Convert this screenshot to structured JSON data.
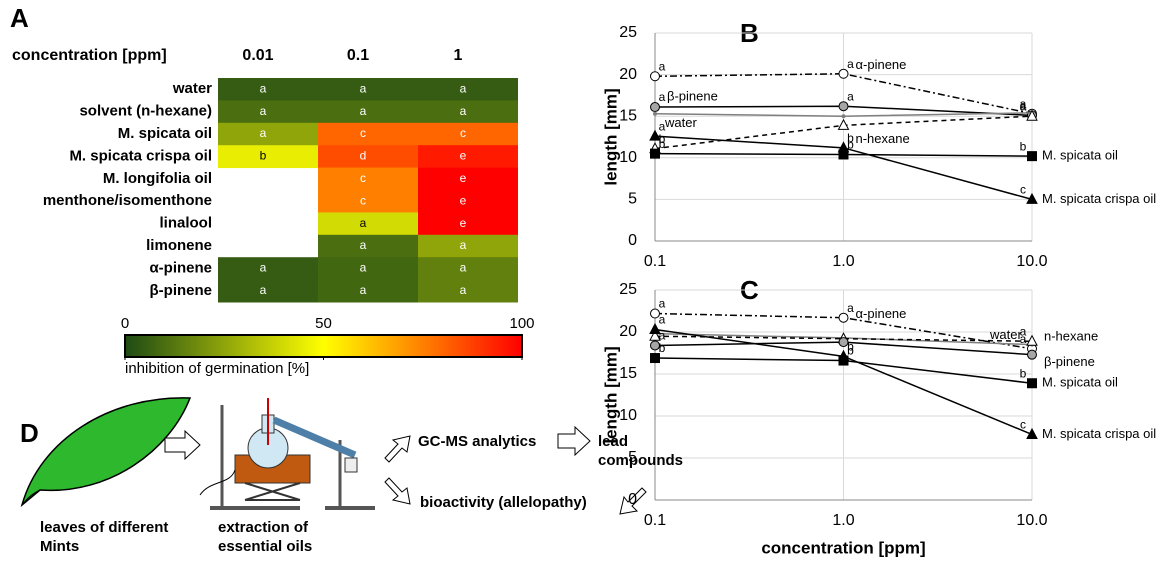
{
  "chart_data": [
    {
      "type": "heatmap",
      "panel": "A",
      "x_label": "concentration [ppm]",
      "x_categories": [
        "0.01",
        "0.1",
        "1"
      ],
      "y_categories": [
        "water",
        "solvent (n-hexane)",
        "M. spicata oil",
        "M. spicata crispa oil",
        "M. longifolia oil",
        "menthone/isomenthone",
        "linalool",
        "limonene",
        "α-pinene",
        "β-pinene"
      ],
      "values": [
        [
          5,
          5,
          5
        ],
        [
          10,
          10,
          10
        ],
        [
          25,
          80,
          80
        ],
        [
          45,
          85,
          95
        ],
        [
          null,
          75,
          100
        ],
        [
          null,
          75,
          100
        ],
        [
          null,
          40,
          100
        ],
        [
          null,
          10,
          25
        ],
        [
          5,
          8,
          15
        ],
        [
          5,
          8,
          15
        ]
      ],
      "letters": [
        [
          "a",
          "a",
          "a"
        ],
        [
          "a",
          "a",
          "a"
        ],
        [
          "a",
          "c",
          "c"
        ],
        [
          "b",
          "d",
          "e"
        ],
        [
          null,
          "c",
          "e"
        ],
        [
          null,
          "c",
          "e"
        ],
        [
          null,
          "a",
          "e"
        ],
        [
          null,
          "a",
          "a"
        ],
        [
          "a",
          "a",
          "a"
        ],
        [
          "a",
          "a",
          "a"
        ]
      ],
      "colorbar": {
        "label": "inhibition of germination [%]",
        "lim": [
          0,
          100
        ],
        "ticks": [
          0,
          50,
          100
        ],
        "colors": [
          "#1e4a14",
          "#ffff00",
          "#ff0000"
        ]
      }
    },
    {
      "type": "line",
      "panel": "B",
      "y_label": "length [mm]",
      "log_x": true,
      "grid": true,
      "x": [
        0.1,
        1,
        10
      ],
      "xlim": [
        0.1,
        10
      ],
      "xticks": [
        0.1,
        {
          "value": 1,
          "label": "1.0"
        },
        {
          "value": 10,
          "label": "10.0"
        }
      ],
      "ylim": [
        0,
        25
      ],
      "yticks": [
        0,
        5,
        10,
        15,
        20,
        25
      ],
      "series": [
        {
          "name": "α-pinene",
          "color": "#000000",
          "marker": "circle",
          "marker_fill": "#ffffff",
          "dash": "7,3,2,3",
          "values": [
            19.8,
            20.1,
            15.3
          ],
          "point_labels": [
            "a",
            "a",
            "a"
          ]
        },
        {
          "name": "β-pinene",
          "color": "#000000",
          "marker": "circle",
          "marker_fill": "#a6a6a6",
          "dash": "none",
          "values": [
            16.1,
            16.2,
            15.1
          ],
          "point_labels": [
            "a",
            "a",
            "a"
          ]
        },
        {
          "name": "water",
          "color": "#7f7f7f",
          "marker": "none",
          "marker_fill": "#7f7f7f",
          "dash": "none",
          "values": [
            15.3,
            15.0,
            15.4
          ],
          "point_labels": [
            null,
            null,
            null
          ]
        },
        {
          "name": "n-hexane",
          "color": "#000000",
          "marker": "triangle",
          "marker_fill": "#ffffff",
          "dash": "5,4",
          "values": [
            11.1,
            13.9,
            15.0
          ],
          "point_labels": [
            "b",
            null,
            "a"
          ]
        },
        {
          "name": "M. spicata oil",
          "color": "#000000",
          "marker": "square",
          "marker_fill": "#000000",
          "dash": "none",
          "values": [
            10.5,
            10.4,
            10.2
          ],
          "point_labels": [
            "b",
            "b",
            "b"
          ]
        },
        {
          "name": "M. spicata crispa oil",
          "color": "#000000",
          "marker": "triangle",
          "marker_fill": "#000000",
          "dash": "none",
          "values": [
            12.6,
            11.2,
            5.0
          ],
          "point_labels": [
            "a",
            "b",
            "c"
          ]
        }
      ]
    },
    {
      "type": "line",
      "panel": "C",
      "y_label": "length [mm]",
      "x_label": "concentration [ppm]",
      "log_x": true,
      "grid": true,
      "x": [
        0.1,
        1,
        10
      ],
      "xlim": [
        0.1,
        10
      ],
      "xticks": [
        0.1,
        {
          "value": 1,
          "label": "1.0"
        },
        {
          "value": 10,
          "label": "10.0"
        }
      ],
      "ylim": [
        0,
        25
      ],
      "yticks": [
        0,
        5,
        10,
        15,
        20,
        25
      ],
      "series": [
        {
          "name": "α-pinene",
          "color": "#000000",
          "marker": "circle",
          "marker_fill": "#ffffff",
          "dash": "7,3,2,3",
          "values": [
            22.2,
            21.7,
            18.0
          ],
          "point_labels": [
            "a",
            "a",
            "a"
          ]
        },
        {
          "name": "water",
          "color": "#7f7f7f",
          "marker": "none",
          "marker_fill": "#7f7f7f",
          "dash": "none",
          "values": [
            19.8,
            19.3,
            18.5
          ],
          "point_labels": [
            null,
            null,
            null
          ]
        },
        {
          "name": "n-hexane",
          "color": "#000000",
          "marker": "triangle",
          "marker_fill": "#ffffff",
          "dash": "5,4",
          "values": [
            19.5,
            19.2,
            18.9
          ],
          "point_labels": [
            null,
            null,
            "a"
          ]
        },
        {
          "name": "β-pinene",
          "color": "#000000",
          "marker": "circle",
          "marker_fill": "#a6a6a6",
          "dash": "none",
          "values": [
            18.4,
            18.8,
            17.3
          ],
          "point_labels": [
            "a",
            null,
            null
          ]
        },
        {
          "name": "M. spicata oil",
          "color": "#000000",
          "marker": "square",
          "marker_fill": "#000000",
          "dash": "none",
          "values": [
            16.9,
            16.6,
            13.9
          ],
          "point_labels": [
            "b",
            "b",
            "b"
          ]
        },
        {
          "name": "M. spicata crispa oil",
          "color": "#000000",
          "marker": "triangle",
          "marker_fill": "#000000",
          "dash": "none",
          "values": [
            20.3,
            17.1,
            7.8
          ],
          "point_labels": [
            "a",
            "b",
            "c"
          ]
        }
      ]
    }
  ],
  "diagram": {
    "panel": "D",
    "leaves": "leaves of different Mints",
    "extraction": "extraction of essential oils",
    "analytics": "GC-MS analytics",
    "lead": "lead compounds",
    "bioactivity": "bioactivity (allelopathy)"
  }
}
